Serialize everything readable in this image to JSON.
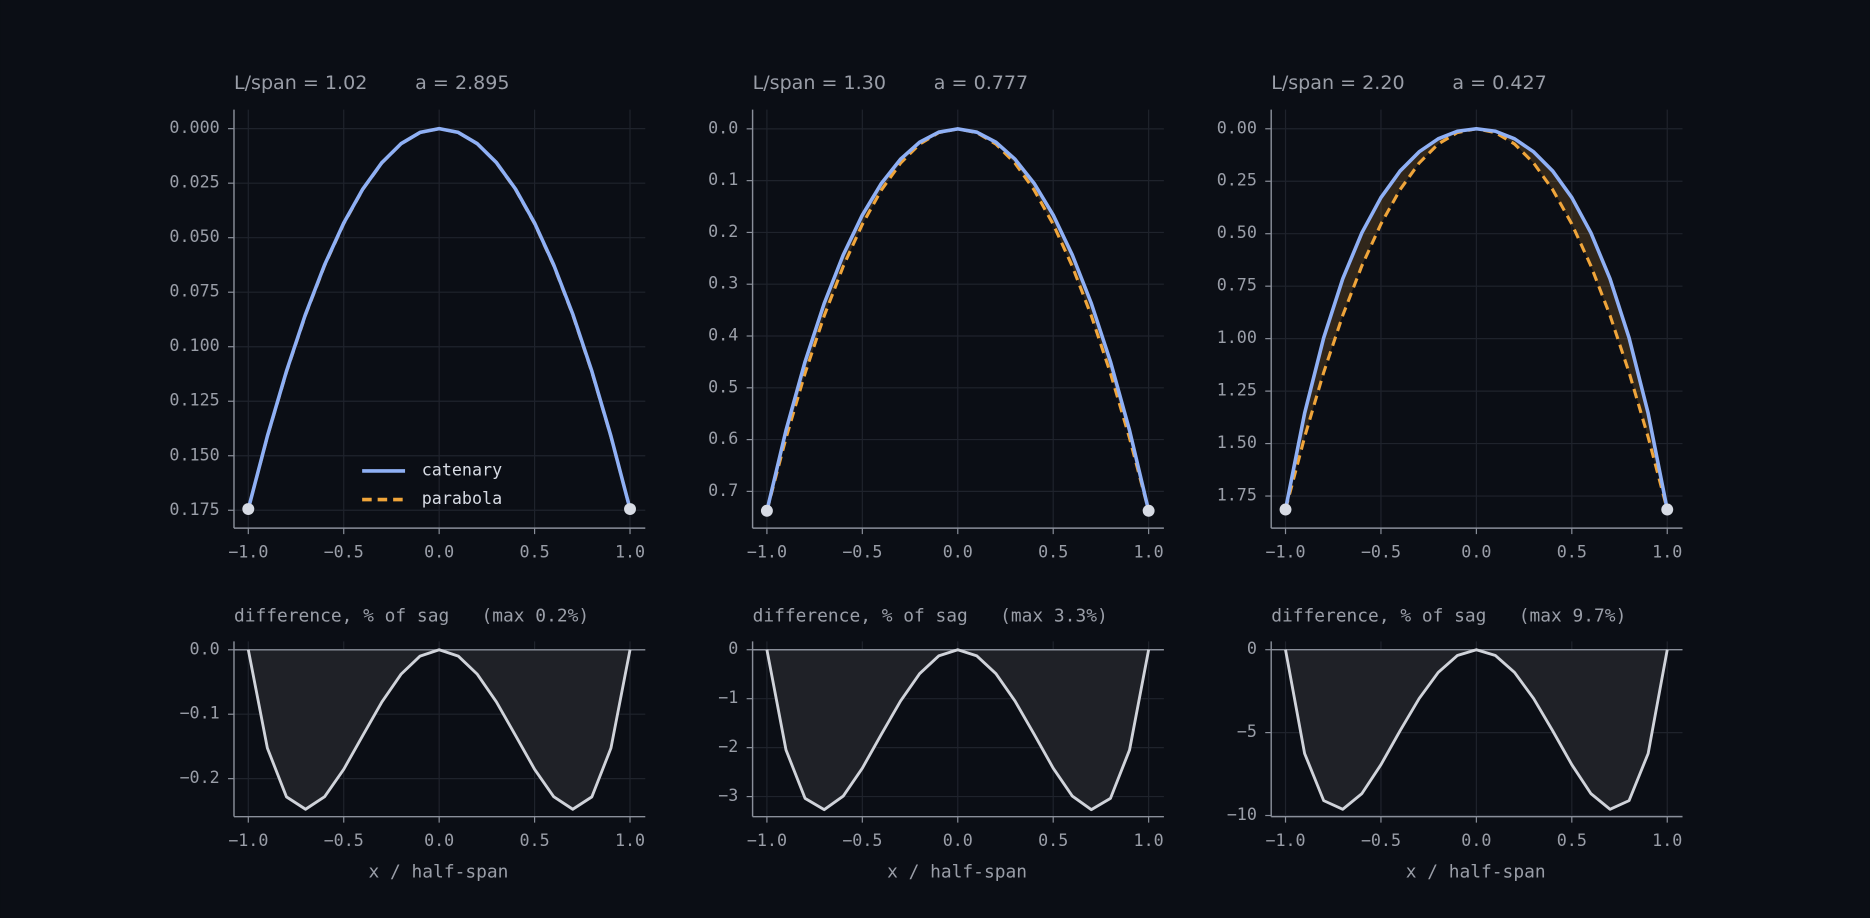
{
  "chart_data": [
    {
      "type": "line",
      "title": "L/span = 1.02",
      "subtitle": "a = 2.895",
      "x": [
        -1,
        -0.9,
        -0.8,
        -0.7,
        -0.6,
        -0.5,
        -0.4,
        -0.3,
        -0.2,
        -0.1,
        0,
        0.1,
        0.2,
        0.3,
        0.4,
        0.5,
        0.6,
        0.7,
        0.8,
        0.9,
        1
      ],
      "series": [
        {
          "name": "catenary",
          "color": "#8fb0f5",
          "linestyle": "solid",
          "values": [
            0.17443,
            0.141025,
            0.11124,
            0.085041,
            0.062398,
            0.043285,
            0.027678,
            0.015558,
            0.006911,
            0.001727,
            0,
            0.001727,
            0.006911,
            0.015558,
            0.027678,
            0.043285,
            0.062398,
            0.085041,
            0.11124,
            0.141025,
            0.17443
          ]
        },
        {
          "name": "parabola",
          "color": "#f0a53a",
          "linestyle": "dashed",
          "values": [
            0.17443,
            0.141288,
            0.111635,
            0.085471,
            0.062795,
            0.043608,
            0.027909,
            0.015699,
            0.006977,
            0.001744,
            0,
            0.001744,
            0.006977,
            0.015699,
            0.027909,
            0.043608,
            0.062795,
            0.085471,
            0.111635,
            0.141288,
            0.17443
          ]
        }
      ],
      "xlim": [
        -1.075,
        1.08
      ],
      "ylim": [
        0.1832,
        -0.0087
      ],
      "xticks": [
        {
          "value": -1,
          "label": "−1.0"
        },
        {
          "value": -0.5,
          "label": "−0.5"
        },
        {
          "value": 0,
          "label": "0.0"
        },
        0.5,
        {
          "value": 1,
          "label": "1.0"
        }
      ],
      "yticks": [
        {
          "value": 0,
          "label": "0.000"
        },
        0.025,
        {
          "value": 0.05,
          "label": "0.050"
        },
        0.075,
        {
          "value": 0.1,
          "label": "0.100"
        },
        0.125,
        {
          "value": 0.15,
          "label": "0.150"
        },
        0.175
      ],
      "grid": true,
      "fill_between": true,
      "endpoints": true,
      "legend": "lower center"
    },
    {
      "type": "line",
      "title": "L/span = 1.30",
      "subtitle": "a = 0.777",
      "x": [
        -1,
        -0.9,
        -0.8,
        -0.7,
        -0.6,
        -0.5,
        -0.4,
        -0.3,
        -0.2,
        -0.1,
        0,
        0.1,
        0.2,
        0.3,
        0.4,
        0.5,
        0.6,
        0.7,
        0.8,
        0.9,
        1
      ],
      "series": [
        {
          "name": "catenary",
          "color": "#8fb0f5",
          "linestyle": "solid",
          "values": [
            0.737373,
            0.582175,
            0.449529,
            0.337226,
            0.243403,
            0.166503,
            0.105252,
            0.058639,
            0.025883,
            0.006444,
            0,
            0.006444,
            0.025883,
            0.058639,
            0.105252,
            0.166503,
            0.243403,
            0.337226,
            0.449529,
            0.582175,
            0.737373
          ]
        },
        {
          "name": "parabola",
          "color": "#f0a53a",
          "linestyle": "dashed",
          "values": [
            0.737373,
            0.597272,
            0.471919,
            0.361313,
            0.265454,
            0.184343,
            0.11798,
            0.066364,
            0.029495,
            0.007374,
            0,
            0.007374,
            0.029495,
            0.066364,
            0.11798,
            0.184343,
            0.265454,
            0.361313,
            0.471919,
            0.597272,
            0.737373
          ]
        }
      ],
      "xlim": [
        -1.075,
        1.08
      ],
      "ylim": [
        0.771,
        -0.037
      ],
      "xticks": [
        {
          "value": -1,
          "label": "−1.0"
        },
        {
          "value": -0.5,
          "label": "−0.5"
        },
        {
          "value": 0,
          "label": "0.0"
        },
        0.5,
        {
          "value": 1,
          "label": "1.0"
        }
      ],
      "yticks": [
        {
          "value": 0,
          "label": "0.0"
        },
        0.1,
        0.2,
        0.3,
        0.4,
        0.5,
        0.6,
        0.7
      ],
      "grid": true,
      "fill_between": true,
      "endpoints": true
    },
    {
      "type": "line",
      "title": "L/span = 2.20",
      "subtitle": "a = 0.427",
      "x": [
        -1,
        -0.9,
        -0.8,
        -0.7,
        -0.6,
        -0.5,
        -0.4,
        -0.3,
        -0.2,
        -0.1,
        0,
        0.1,
        0.2,
        0.3,
        0.4,
        0.5,
        0.6,
        0.7,
        0.8,
        0.9,
        1
      ],
      "series": [
        {
          "name": "catenary",
          "color": "#8fb0f5",
          "linestyle": "solid",
          "values": [
            1.814195,
            1.355947,
            0.995947,
            0.714348,
            0.495635,
            0.327756,
            0.201462,
            0.109794,
            0.047701,
            0.011763,
            0,
            0.011763,
            0.047701,
            0.109794,
            0.201462,
            0.327756,
            0.495635,
            0.714348,
            0.995947,
            1.355947,
            1.814195
          ]
        },
        {
          "name": "parabola",
          "color": "#f0a53a",
          "linestyle": "dashed",
          "values": [
            1.814195,
            1.469498,
            1.161085,
            0.888956,
            0.65311,
            0.453549,
            0.290271,
            0.163278,
            0.072568,
            0.018142,
            0,
            0.018142,
            0.072568,
            0.163278,
            0.290271,
            0.453549,
            0.65311,
            0.888956,
            1.161085,
            1.469498,
            1.814195
          ]
        }
      ],
      "xlim": [
        -1.075,
        1.08
      ],
      "ylim": [
        1.903,
        -0.091
      ],
      "xticks": [
        {
          "value": -1,
          "label": "−1.0"
        },
        {
          "value": -0.5,
          "label": "−0.5"
        },
        {
          "value": 0,
          "label": "0.0"
        },
        0.5,
        {
          "value": 1,
          "label": "1.0"
        }
      ],
      "yticks": [
        {
          "value": 0,
          "label": "0.00"
        },
        0.25,
        {
          "value": 0.5,
          "label": "0.50"
        },
        0.75,
        {
          "value": 1,
          "label": "1.00"
        },
        1.25,
        {
          "value": 1.5,
          "label": "1.50"
        },
        1.75
      ],
      "grid": true,
      "fill_between": true,
      "endpoints": true
    },
    {
      "type": "area",
      "title": "difference, % of sag   (max 0.2%)",
      "xlabel": "x / half-span",
      "color": "#d0d3da",
      "x": [
        -1,
        -0.9,
        -0.8,
        -0.7,
        -0.6,
        -0.5,
        -0.4,
        -0.3,
        -0.2,
        -0.1,
        0,
        0.1,
        0.2,
        0.3,
        0.4,
        0.5,
        0.6,
        0.7,
        0.8,
        0.9,
        1
      ],
      "values": [
        0,
        -0.1526,
        -0.2283,
        -0.2475,
        -0.228,
        -0.1855,
        -0.1329,
        -0.081,
        -0.038,
        -0.0098,
        0,
        -0.0098,
        -0.038,
        -0.081,
        -0.1329,
        -0.1855,
        -0.228,
        -0.2475,
        -0.2283,
        -0.1526,
        0
      ],
      "xlim": [
        -1.075,
        1.08
      ],
      "ylim": [
        -0.259,
        0.013
      ],
      "xticks": [
        {
          "value": -1,
          "label": "−1.0"
        },
        {
          "value": -0.5,
          "label": "−0.5"
        },
        {
          "value": 0,
          "label": "0.0"
        },
        0.5,
        {
          "value": 1,
          "label": "1.0"
        }
      ],
      "yticks": [
        {
          "value": 0,
          "label": "0.0"
        },
        {
          "value": -0.1,
          "label": "−0.1"
        },
        {
          "value": -0.2,
          "label": "−0.2"
        }
      ],
      "grid": true
    },
    {
      "type": "area",
      "title": "difference, % of sag   (max 3.3%)",
      "xlabel": "x / half-span",
      "color": "#d0d3da",
      "x": [
        -1,
        -0.9,
        -0.8,
        -0.7,
        -0.6,
        -0.5,
        -0.4,
        -0.3,
        -0.2,
        -0.1,
        0,
        0.1,
        0.2,
        0.3,
        0.4,
        0.5,
        0.6,
        0.7,
        0.8,
        0.9,
        1
      ],
      "values": [
        0,
        -2.047,
        -3.036,
        -3.267,
        -2.99,
        -2.419,
        -1.726,
        -1.048,
        -0.49,
        -0.126,
        0,
        -0.126,
        -0.49,
        -1.048,
        -1.726,
        -2.419,
        -2.99,
        -3.267,
        -3.036,
        -2.047,
        0
      ],
      "xlim": [
        -1.075,
        1.08
      ],
      "ylim": [
        -3.41,
        0.17
      ],
      "xticks": [
        {
          "value": -1,
          "label": "−1.0"
        },
        {
          "value": -0.5,
          "label": "−0.5"
        },
        {
          "value": 0,
          "label": "0.0"
        },
        0.5,
        {
          "value": 1,
          "label": "1.0"
        }
      ],
      "yticks": [
        0,
        {
          "value": -1,
          "label": "−1"
        },
        {
          "value": -2,
          "label": "−2"
        },
        {
          "value": -3,
          "label": "−3"
        }
      ],
      "grid": true
    },
    {
      "type": "area",
      "title": "difference, % of sag   (max 9.7%)",
      "xlabel": "x / half-span",
      "color": "#d0d3da",
      "x": [
        -1,
        -0.9,
        -0.8,
        -0.7,
        -0.6,
        -0.5,
        -0.4,
        -0.3,
        -0.2,
        -0.1,
        0,
        0.1,
        0.2,
        0.3,
        0.4,
        0.5,
        0.6,
        0.7,
        0.8,
        0.9,
        1
      ],
      "values": [
        0,
        -6.259,
        -9.103,
        -9.625,
        -8.68,
        -6.934,
        -4.895,
        -2.948,
        -1.371,
        -0.352,
        0,
        -0.352,
        -1.371,
        -2.948,
        -4.895,
        -6.934,
        -8.68,
        -9.625,
        -9.103,
        -6.259,
        0
      ],
      "xlim": [
        -1.075,
        1.08
      ],
      "ylim": [
        -10.07,
        0.5
      ],
      "xticks": [
        {
          "value": -1,
          "label": "−1.0"
        },
        {
          "value": -0.5,
          "label": "−0.5"
        },
        {
          "value": 0,
          "label": "0.0"
        },
        0.5,
        {
          "value": 1,
          "label": "1.0"
        }
      ],
      "yticks": [
        0,
        {
          "value": -5,
          "label": "−5"
        },
        {
          "value": -10,
          "label": "−10"
        }
      ],
      "grid": true
    }
  ]
}
